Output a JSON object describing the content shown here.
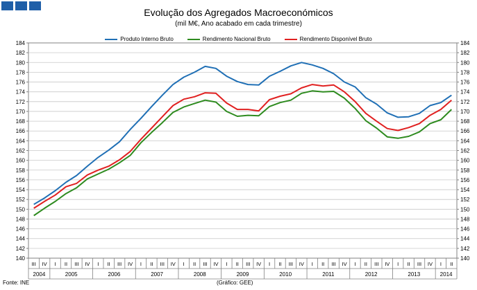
{
  "logo": {
    "color": "#1f5fa8",
    "blocks": 3
  },
  "chart_data": {
    "type": "line",
    "title": "Evolução dos Agregados Macroeconómicos",
    "subtitle": "(mil M€, Ano acabado em cada trimestre)",
    "source": "Fonte: INE",
    "credit": "(Gráfico: GEE)",
    "ylim": [
      140,
      184
    ],
    "yticks": [
      140,
      142,
      144,
      146,
      148,
      150,
      152,
      154,
      156,
      158,
      160,
      162,
      164,
      166,
      168,
      170,
      172,
      174,
      176,
      178,
      180,
      182,
      184
    ],
    "quarters": [
      "III",
      "IV",
      "I",
      "II",
      "III",
      "IV",
      "I",
      "II",
      "III",
      "IV",
      "I",
      "II",
      "III",
      "IV",
      "I",
      "II",
      "III",
      "IV",
      "I",
      "II",
      "III",
      "IV",
      "I",
      "II",
      "III",
      "IV",
      "I",
      "II",
      "III",
      "IV",
      "I",
      "II",
      "III",
      "IV",
      "I",
      "II",
      "III",
      "IV",
      "I",
      "II"
    ],
    "years": [
      {
        "label": "2004",
        "quarters": 2
      },
      {
        "label": "2005",
        "quarters": 4
      },
      {
        "label": "2006",
        "quarters": 4
      },
      {
        "label": "2007",
        "quarters": 4
      },
      {
        "label": "2008",
        "quarters": 4
      },
      {
        "label": "2009",
        "quarters": 4
      },
      {
        "label": "2010",
        "quarters": 4
      },
      {
        "label": "2011",
        "quarters": 4
      },
      {
        "label": "2012",
        "quarters": 4
      },
      {
        "label": "2013",
        "quarters": 4
      },
      {
        "label": "2014",
        "quarters": 2
      }
    ],
    "grid": true,
    "legend_position": "top",
    "series": [
      {
        "name": "Produto Interno Bruto",
        "color": "#1f6fb5",
        "values": [
          151.0,
          152.3,
          153.8,
          155.5,
          156.9,
          158.8,
          160.6,
          162.1,
          163.8,
          166.3,
          168.6,
          171.0,
          173.3,
          175.5,
          177.0,
          178.0,
          179.2,
          178.8,
          177.2,
          176.1,
          175.5,
          175.4,
          177.2,
          178.2,
          179.3,
          180.0,
          179.5,
          178.8,
          177.7,
          176.0,
          175.0,
          172.8,
          171.5,
          169.7,
          168.8,
          168.9,
          169.6,
          171.2,
          171.8,
          173.3
        ]
      },
      {
        "name": "Rendimento Nacional Bruto",
        "color": "#2e8b1f",
        "values": [
          148.7,
          150.2,
          151.6,
          153.2,
          154.4,
          156.2,
          157.2,
          158.2,
          159.5,
          161.0,
          163.6,
          165.7,
          167.7,
          169.8,
          170.9,
          171.6,
          172.3,
          171.9,
          170.0,
          169.0,
          169.2,
          169.1,
          171.0,
          171.8,
          172.3,
          173.7,
          174.2,
          174.0,
          174.1,
          172.7,
          170.6,
          168.1,
          166.6,
          164.8,
          164.5,
          164.9,
          165.8,
          167.5,
          168.3,
          170.4
        ]
      },
      {
        "name": "Rendimento Disponível Bruto",
        "color": "#e02020",
        "values": [
          150.2,
          151.6,
          152.9,
          154.6,
          155.3,
          157.0,
          158.0,
          158.8,
          160.1,
          161.8,
          164.3,
          166.6,
          168.9,
          171.2,
          172.5,
          173.0,
          173.8,
          173.7,
          171.7,
          170.4,
          170.4,
          170.1,
          172.4,
          173.1,
          173.6,
          174.8,
          175.5,
          175.2,
          175.4,
          174.0,
          172.0,
          169.6,
          168.0,
          166.5,
          166.1,
          166.7,
          167.5,
          169.2,
          170.4,
          172.3
        ]
      }
    ]
  }
}
